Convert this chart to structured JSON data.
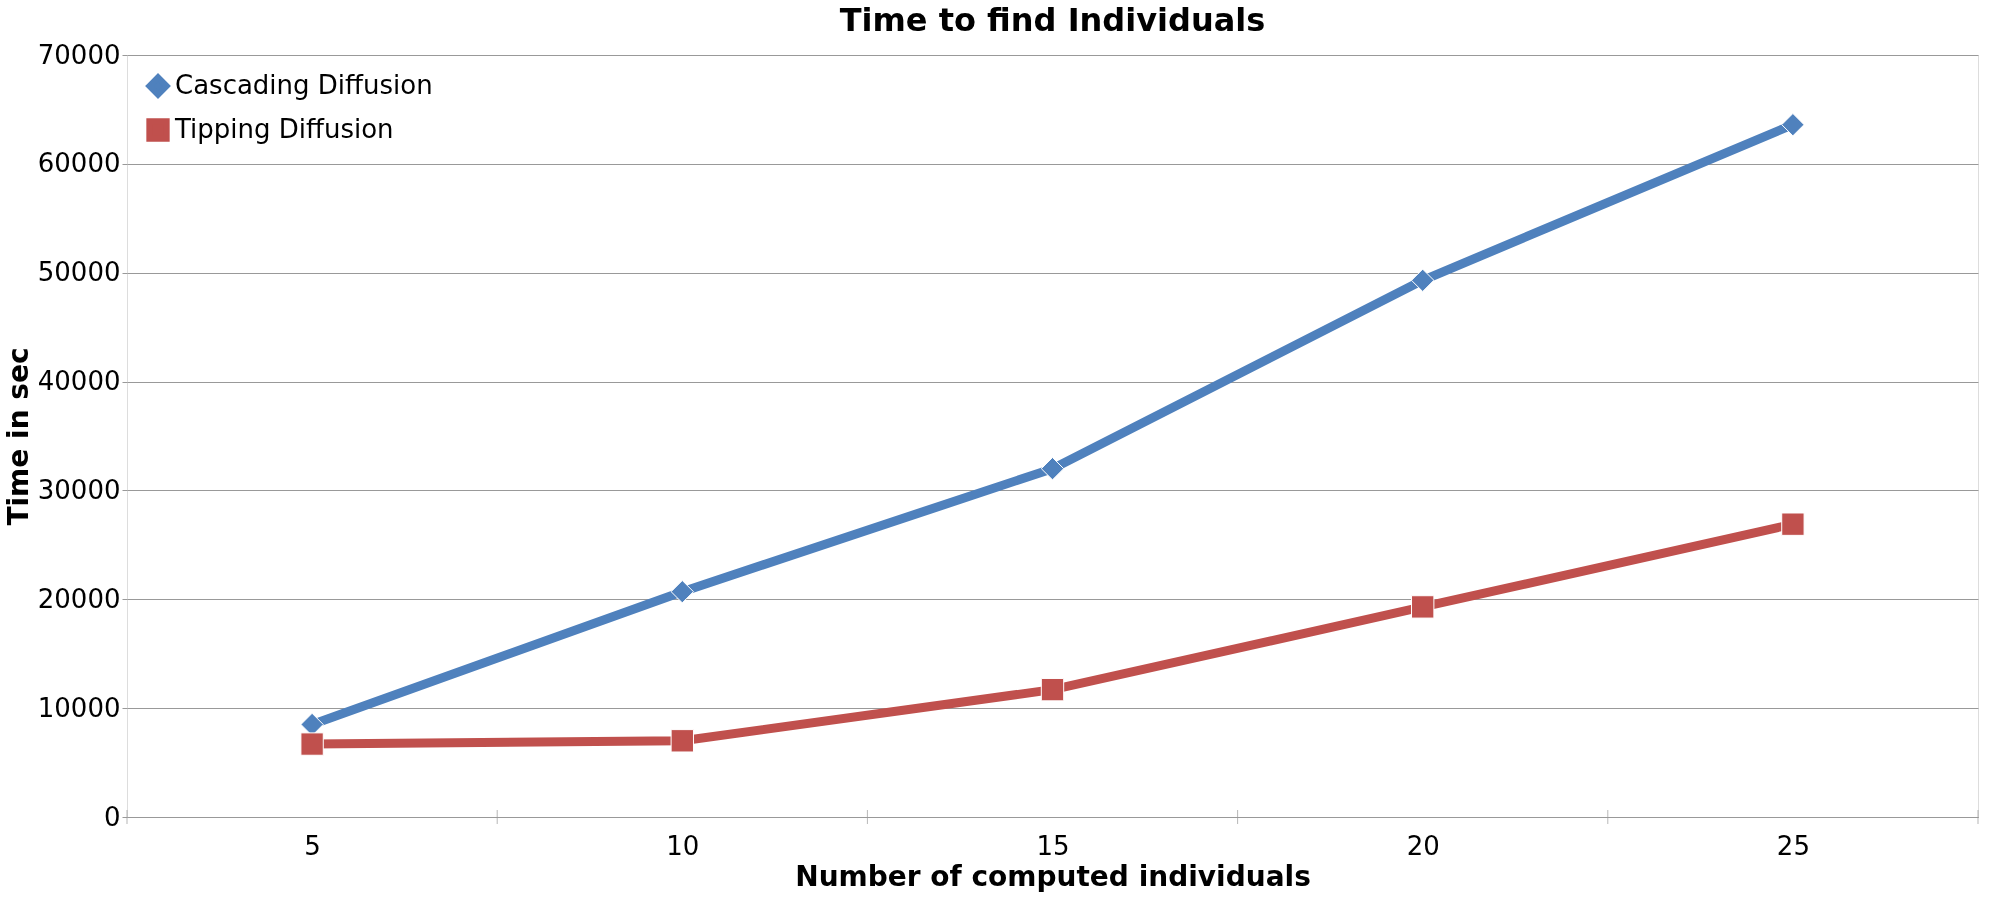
{
  "chart_data": {
    "type": "line",
    "title": "Time to find Individuals",
    "xlabel": "Number of computed individuals",
    "ylabel": "Time in sec",
    "categories": [
      "5",
      "10",
      "15",
      "20",
      "25"
    ],
    "series": [
      {
        "name": "Cascading Diffusion",
        "color": "#4f81bd",
        "marker": "diamond",
        "values": [
          8500,
          20700,
          32000,
          49300,
          63600
        ]
      },
      {
        "name": "Tipping Diffusion",
        "color": "#c0504d",
        "marker": "square",
        "values": [
          6700,
          7000,
          11700,
          19300,
          26900
        ]
      }
    ],
    "ylim": [
      0,
      70000
    ],
    "yticks": [
      0,
      10000,
      20000,
      30000,
      40000,
      50000,
      60000,
      70000
    ],
    "grid": "y",
    "legend": "top left",
    "line_style": "solid"
  }
}
